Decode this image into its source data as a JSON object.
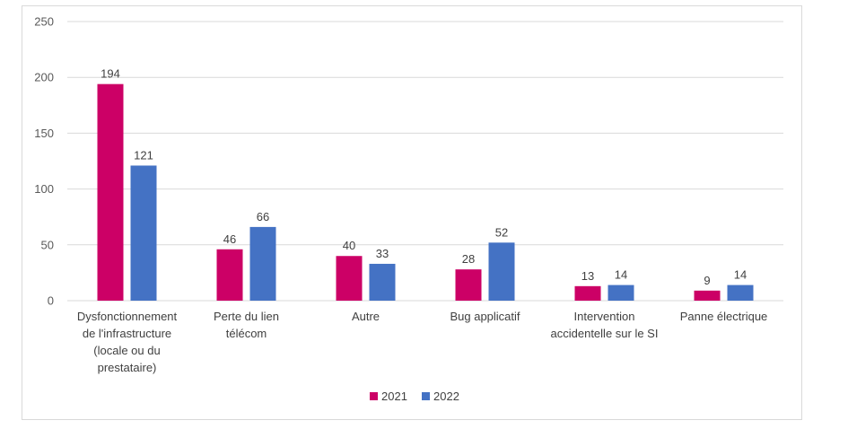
{
  "chart_data": {
    "type": "bar",
    "title": "",
    "xlabel": "",
    "ylabel": "",
    "ylim": [
      0,
      250
    ],
    "yticks": [
      0,
      50,
      100,
      150,
      200,
      250
    ],
    "grid": true,
    "legend_position": "bottom",
    "categories": [
      [
        "Dysfonctionnement",
        "de l'infrastructure",
        "(locale ou du",
        "prestataire)"
      ],
      [
        "Perte du lien",
        "télécom"
      ],
      [
        "Autre"
      ],
      [
        "Bug applicatif"
      ],
      [
        "Intervention",
        "accidentelle sur le SI"
      ],
      [
        "Panne électrique"
      ]
    ],
    "series": [
      {
        "name": "2021",
        "color": "#cc0066",
        "values": [
          194,
          46,
          40,
          28,
          13,
          9
        ]
      },
      {
        "name": "2022",
        "color": "#4472c4",
        "values": [
          121,
          66,
          33,
          52,
          14,
          14
        ]
      }
    ]
  }
}
